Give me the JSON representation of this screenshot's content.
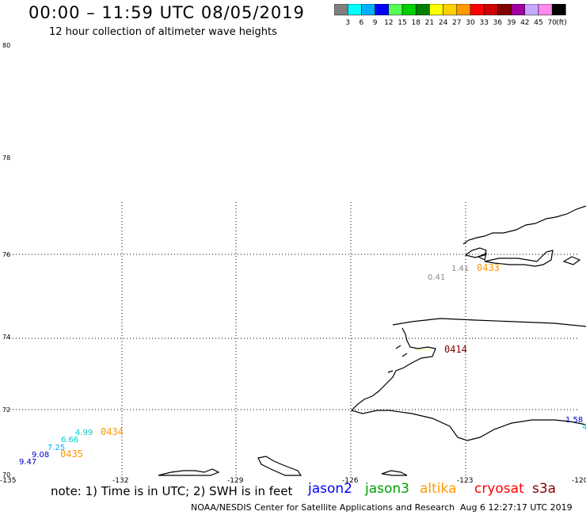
{
  "title": "00:00 – 11:59 UTC 08/05/2019",
  "subtitle": "12 hour collection of altimeter wave heights",
  "scale": {
    "labels": [
      "3",
      "6",
      "9",
      "12",
      "15",
      "18",
      "21",
      "24",
      "27",
      "30",
      "33",
      "36",
      "39",
      "42",
      "45",
      "70"
    ],
    "unit": "(ft)",
    "colors": [
      "#7f7f7f",
      "#00ffff",
      "#00b0ff",
      "#0000ff",
      "#55ff55",
      "#00d000",
      "#008000",
      "#ffff00",
      "#ffd000",
      "#ff9900",
      "#ff0000",
      "#d00000",
      "#800000",
      "#a000a0",
      "#c8a8ff",
      "#ff88ee",
      "#000000"
    ]
  },
  "axes": {
    "lat_labels": [
      "80",
      "78",
      "76",
      "74",
      "72",
      "70"
    ],
    "lon_labels": [
      "-135",
      "-132",
      "-129",
      "-126",
      "-123",
      "-120"
    ]
  },
  "annotations": {
    "swh": [
      {
        "text": "0.41",
        "color": "#888888"
      },
      {
        "text": "1.41",
        "color": "#888888"
      },
      {
        "text": "4.99",
        "color": "#00cccc"
      },
      {
        "text": "6.66",
        "color": "#00cccc"
      },
      {
        "text": "7.25",
        "color": "#00aaff"
      },
      {
        "text": "9.08",
        "color": "#0000cc"
      },
      {
        "text": "9.47",
        "color": "#0000cc"
      },
      {
        "text": "1.58",
        "color": "#0000cc"
      }
    ],
    "times": [
      {
        "text": "0433",
        "color": "#ff9900"
      },
      {
        "text": "0414",
        "color": "#800000"
      },
      {
        "text": "0434",
        "color": "#ff9900"
      },
      {
        "text": "0435",
        "color": "#ff9900"
      }
    ]
  },
  "note": "note: 1) Time is in UTC; 2) SWH is in feet",
  "satellites": [
    {
      "name": "jason2",
      "color": "#0000ff"
    },
    {
      "name": "jason3",
      "color": "#00a000"
    },
    {
      "name": "altika",
      "color": "#ff9900"
    },
    {
      "name": "cryosat",
      "color": "#ff0000"
    },
    {
      "name": "s3a",
      "color": "#800000"
    }
  ],
  "footer_left": "NOAA/NESDIS Center for Satellite Applications and Research",
  "footer_right": "Aug 6 12:27:17 UTC 2019"
}
